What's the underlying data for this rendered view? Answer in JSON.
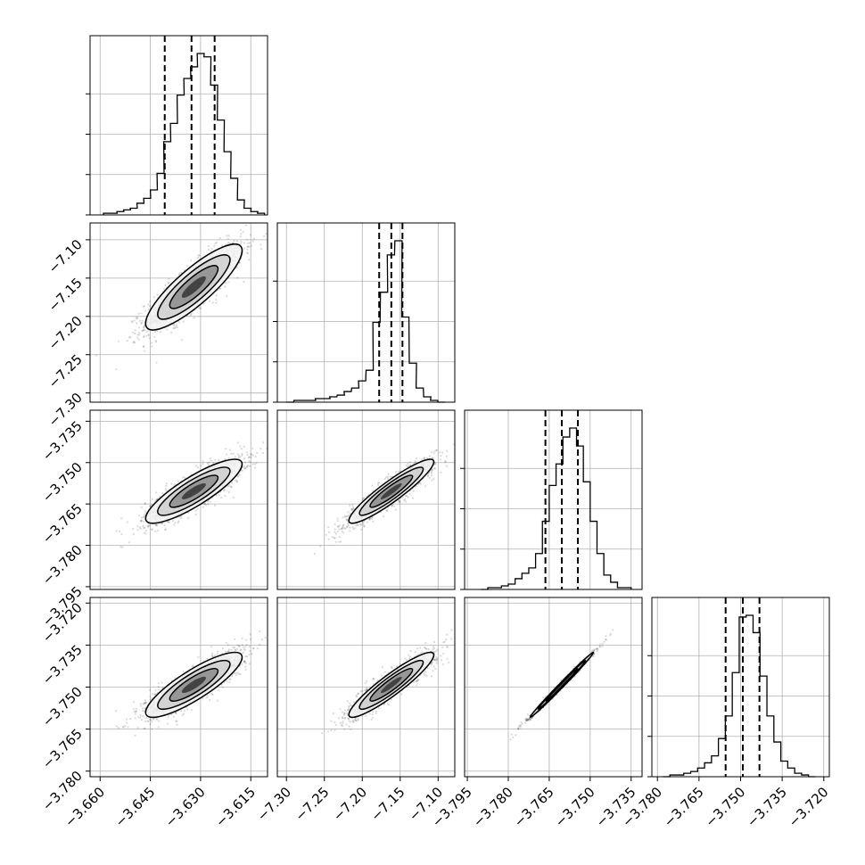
{
  "chart_data": {
    "type": "corner",
    "grid": true,
    "parameters": [
      {
        "range": [
          -3.663,
          -3.61
        ],
        "ticks": [
          "−3.660",
          "−3.645",
          "−3.630",
          "−3.615"
        ],
        "tick_values": [
          -3.66,
          -3.645,
          -3.63,
          -3.615
        ]
      },
      {
        "range": [
          -7.312,
          -7.078
        ],
        "ticks": [
          "−7.30",
          "−7.25",
          "−7.20",
          "−7.15",
          "−7.10"
        ],
        "tick_values": [
          -7.3,
          -7.25,
          -7.2,
          -7.15,
          -7.1
        ]
      },
      {
        "range": [
          -3.796,
          -3.731
        ],
        "ticks": [
          "−3.795",
          "−3.780",
          "−3.765",
          "−3.750",
          "−3.735"
        ],
        "tick_values": [
          -3.795,
          -3.78,
          -3.765,
          -3.75,
          -3.735
        ]
      },
      {
        "range": [
          -3.782,
          -3.718
        ],
        "ticks": [
          "−3.780",
          "−3.765",
          "−3.750",
          "−3.735",
          "−3.720"
        ],
        "tick_values": [
          -3.78,
          -3.765,
          -3.75,
          -3.735,
          -3.72
        ]
      }
    ],
    "histograms": [
      {
        "param": 0,
        "quantiles": [
          -3.6407,
          -3.6327,
          -3.6258
        ],
        "bin_width": 0.0021,
        "bins": [
          -3.659,
          -3.657,
          -3.655,
          -3.653,
          -3.651,
          -3.649,
          -3.647,
          -3.645,
          -3.643,
          -3.641,
          -3.639,
          -3.637,
          -3.635,
          -3.633,
          -3.631,
          -3.629,
          -3.627,
          -3.625,
          -3.623,
          -3.621,
          -3.619,
          -3.617,
          -3.615,
          -3.613
        ],
        "counts": [
          1,
          1,
          2,
          3,
          4,
          7,
          10,
          15,
          25,
          44,
          55,
          72,
          82,
          89,
          97,
          95,
          78,
          57,
          38,
          22,
          9,
          4,
          2,
          1
        ]
      },
      {
        "param": 1,
        "quantiles": [
          -7.1777,
          -7.1617,
          -7.147
        ],
        "bin_width": 0.0095,
        "bins": [
          -7.3,
          -7.29,
          -7.281,
          -7.271,
          -7.262,
          -7.252,
          -7.243,
          -7.233,
          -7.224,
          -7.214,
          -7.205,
          -7.195,
          -7.186,
          -7.176,
          -7.167,
          -7.157,
          -7.148,
          -7.138,
          -7.129,
          -7.119,
          -7.11,
          -7.1
        ],
        "counts": [
          0,
          1,
          1,
          1,
          2,
          2,
          3,
          4,
          6,
          8,
          12,
          18,
          45,
          62,
          83,
          91,
          48,
          22,
          8,
          3,
          1,
          0
        ]
      },
      {
        "param": 2,
        "quantiles": [
          -3.7664,
          -3.7604,
          -3.7545
        ],
        "bin_width": 0.0025,
        "bins": [
          -3.79,
          -3.7875,
          -3.785,
          -3.7825,
          -3.78,
          -3.7775,
          -3.775,
          -3.7725,
          -3.77,
          -3.7675,
          -3.765,
          -3.7625,
          -3.76,
          -3.7575,
          -3.755,
          -3.7525,
          -3.75,
          -3.7475,
          -3.745,
          -3.7425,
          -3.74,
          -3.7375
        ],
        "counts": [
          0,
          1,
          1,
          2,
          3,
          6,
          9,
          12,
          20,
          38,
          58,
          70,
          85,
          90,
          80,
          60,
          38,
          20,
          8,
          4,
          1,
          1
        ]
      },
      {
        "param": 3,
        "quantiles": [
          -3.7554,
          -3.7492,
          -3.7432
        ],
        "bin_width": 0.0025,
        "bins": [
          -3.778,
          -3.7755,
          -3.773,
          -3.7705,
          -3.768,
          -3.7655,
          -3.763,
          -3.7605,
          -3.758,
          -3.7555,
          -3.753,
          -3.7505,
          -3.748,
          -3.7455,
          -3.743,
          -3.7405,
          -3.738,
          -3.7355,
          -3.733,
          -3.7305,
          -3.728,
          -3.7255
        ],
        "counts": [
          0,
          1,
          1,
          2,
          3,
          5,
          8,
          12,
          22,
          35,
          60,
          92,
          93,
          83,
          58,
          35,
          20,
          9,
          5,
          2,
          1,
          0
        ]
      }
    ],
    "pairs": [
      {
        "x": 0,
        "y": 1,
        "mean": [
          -3.632,
          -7.1617
        ],
        "sd": [
          0.0072,
          0.028
        ],
        "rho": 0.85
      },
      {
        "x": 0,
        "y": 2,
        "mean": [
          -3.632,
          -3.7604
        ],
        "sd": [
          0.0072,
          0.0058
        ],
        "rho": 0.85
      },
      {
        "x": 1,
        "y": 2,
        "mean": [
          -7.1617,
          -3.7604
        ],
        "sd": [
          0.028,
          0.0058
        ],
        "rho": 0.92
      },
      {
        "x": 0,
        "y": 3,
        "mean": [
          -3.632,
          -3.7492
        ],
        "sd": [
          0.0072,
          0.0058
        ],
        "rho": 0.85
      },
      {
        "x": 1,
        "y": 3,
        "mean": [
          -7.1617,
          -3.7492
        ],
        "sd": [
          0.028,
          0.0058
        ],
        "rho": 0.92
      },
      {
        "x": 2,
        "y": 3,
        "mean": [
          -3.7604,
          -3.7492
        ],
        "sd": [
          0.0058,
          0.0058
        ],
        "rho": 0.995
      }
    ]
  }
}
